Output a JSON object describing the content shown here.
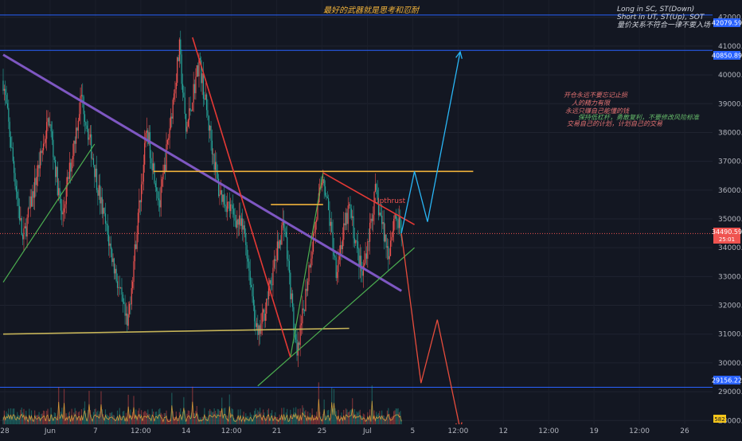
{
  "header": {
    "title": "最好的武器就是思考和忍耐",
    "strategy_lines": [
      "Long in SC, ST(Down)",
      "Short in UT, ST(Up), SOT",
      "量价关系不符合一律不要入场"
    ]
  },
  "notes": {
    "lines": [
      "开仓永远不要忘记止损",
      "人的精力有限",
      "永远只赚自己能懂的钱",
      "保持低杠杆，勇敢复利，不要修改风险标准",
      "交易自己的计划，计划自己的交易"
    ]
  },
  "labels": {
    "upthrust": "Upthrust"
  },
  "price_tags": {
    "top": "42079.59",
    "upper": "40850.89",
    "current": "34490.59",
    "countdown": "25:01",
    "lower": "29156.22",
    "volume": "582"
  },
  "colors": {
    "background": "#131722",
    "up_candle": "#ef5350",
    "down_candle": "#26a69a",
    "level_line": "#2962ff",
    "downtrend_line": "#7e57c2",
    "resistance": "#f0b23b",
    "support": "#c5b358",
    "trend_up": "#4caf50",
    "trend_down": "#e53935",
    "projection_up": "#29b6f6",
    "projection_down": "#e74c3c"
  },
  "chart_data": {
    "type": "candlestick",
    "y_axis": {
      "range": [
        27400,
        42600
      ],
      "ticks": [
        28000,
        29000,
        30000,
        31000,
        32000,
        33000,
        34000,
        35000,
        36000,
        37000,
        38000,
        39000,
        40000,
        41000,
        42000
      ],
      "tick_labels": [
        "28000.00",
        "29000.00",
        "30000.00",
        "31000.00",
        "32000.00",
        "33000.00",
        "34000.00",
        "35000.00",
        "36000.00",
        "37000.00",
        "38000.00",
        "39000.00",
        "40000.00",
        "41000.00",
        "42000.00"
      ]
    },
    "x_axis": {
      "tick_labels": [
        "28",
        "Jun",
        "7",
        "12:00",
        "14",
        "12:00",
        "21",
        "25",
        "Jul",
        "5",
        "12:00",
        "12",
        "12:00",
        "19",
        "12:00",
        "26"
      ]
    },
    "horizontal_levels": [
      42079.59,
      40850.89,
      29156.22
    ],
    "current_price": 34490.59,
    "price_path": [
      [
        0,
        39800
      ],
      [
        3,
        34200
      ],
      [
        7,
        38500
      ],
      [
        9,
        35000
      ],
      [
        12,
        39300
      ],
      [
        15,
        35500
      ],
      [
        19,
        31200
      ],
      [
        22,
        38100
      ],
      [
        24,
        35500
      ],
      [
        27,
        40900
      ],
      [
        28,
        38000
      ],
      [
        30,
        40500
      ],
      [
        33,
        36000
      ],
      [
        37,
        34500
      ],
      [
        39,
        30800
      ],
      [
        41,
        32800
      ],
      [
        43,
        35000
      ],
      [
        45,
        30100
      ],
      [
        47,
        33600
      ],
      [
        49,
        36600
      ],
      [
        51,
        33300
      ],
      [
        53,
        35400
      ],
      [
        55,
        33000
      ],
      [
        57,
        35900
      ],
      [
        59,
        33800
      ],
      [
        60,
        35200
      ],
      [
        61,
        34490
      ]
    ],
    "volume_max": 1000,
    "trendlines": [
      {
        "style": "downtrend",
        "points": [
          [
            0,
            40700
          ],
          [
            61,
            32500
          ]
        ]
      },
      {
        "style": "resistance",
        "points": [
          [
            23,
            36650
          ],
          [
            72,
            36650
          ]
        ]
      },
      {
        "style": "support",
        "points": [
          [
            0,
            31000
          ],
          [
            53,
            31200
          ]
        ]
      },
      {
        "style": "trend_up",
        "points": [
          [
            0,
            32800
          ],
          [
            14,
            37600
          ]
        ]
      },
      {
        "style": "trend_up",
        "points": [
          [
            39,
            29200
          ],
          [
            63,
            34000
          ]
        ]
      },
      {
        "style": "trend_up",
        "points": [
          [
            44,
            30200
          ],
          [
            49,
            36600
          ]
        ]
      },
      {
        "style": "trend_down",
        "points": [
          [
            29,
            41300
          ],
          [
            44,
            30200
          ]
        ]
      },
      {
        "style": "trend_down",
        "points": [
          [
            49,
            36600
          ],
          [
            63,
            34800
          ]
        ]
      },
      {
        "style": "resistance",
        "points": [
          [
            41,
            35500
          ],
          [
            49,
            35500
          ]
        ]
      }
    ],
    "projections": [
      {
        "direction": "up",
        "points": [
          [
            61,
            34500
          ],
          [
            63,
            36650
          ],
          [
            65,
            34900
          ],
          [
            70,
            40800
          ]
        ]
      },
      {
        "direction": "down",
        "points": [
          [
            61,
            34500
          ],
          [
            64,
            29300
          ],
          [
            66.5,
            31500
          ],
          [
            70,
            27700
          ]
        ]
      }
    ]
  }
}
